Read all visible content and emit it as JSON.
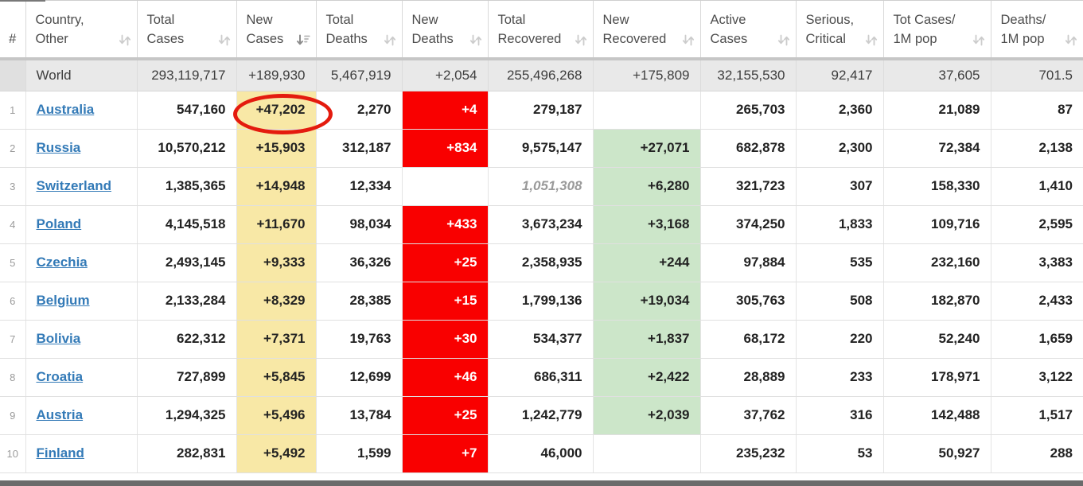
{
  "colors": {
    "new-cases-bg": "#F8E8A6",
    "new-deaths-bg": "#F90000",
    "new-recovered-bg": "#CCE6C9",
    "link-blue": "#337AB7",
    "annotation-red": "#E41B0E",
    "world-row-bg": "#E9E9E9"
  },
  "annotation": {
    "shape": "red-ellipse",
    "circled_value": "+47,202",
    "circled_cell": "Australia new cases"
  },
  "table": {
    "columns": [
      {
        "key": "rank",
        "label_lines": [
          "#"
        ],
        "sort": "none"
      },
      {
        "key": "country",
        "label_lines": [
          "Country,",
          "Other"
        ],
        "sort": "both"
      },
      {
        "key": "total_cases",
        "label_lines": [
          "Total",
          "Cases"
        ],
        "sort": "both"
      },
      {
        "key": "new_cases",
        "label_lines": [
          "New",
          "Cases"
        ],
        "sort": "desc"
      },
      {
        "key": "total_deaths",
        "label_lines": [
          "Total",
          "Deaths"
        ],
        "sort": "both"
      },
      {
        "key": "new_deaths",
        "label_lines": [
          "New",
          "Deaths"
        ],
        "sort": "both"
      },
      {
        "key": "total_recovered",
        "label_lines": [
          "Total",
          "Recovered"
        ],
        "sort": "both"
      },
      {
        "key": "new_recovered",
        "label_lines": [
          "New",
          "Recovered"
        ],
        "sort": "both"
      },
      {
        "key": "active_cases",
        "label_lines": [
          "Active",
          "Cases"
        ],
        "sort": "both"
      },
      {
        "key": "serious_critical",
        "label_lines": [
          "Serious,",
          "Critical"
        ],
        "sort": "both"
      },
      {
        "key": "tot_cases_1m",
        "label_lines": [
          "Tot Cases/",
          "1M pop"
        ],
        "sort": "both"
      },
      {
        "key": "deaths_1m",
        "label_lines": [
          "Deaths/",
          "1M pop"
        ],
        "sort": "both"
      }
    ],
    "world_row": {
      "rank": "",
      "country": "World",
      "total_cases": "293,119,717",
      "new_cases": "+189,930",
      "total_deaths": "5,467,919",
      "new_deaths": "+2,054",
      "total_recovered": "255,496,268",
      "new_recovered": "+175,809",
      "active_cases": "32,155,530",
      "serious_critical": "92,417",
      "tot_cases_1m": "37,605",
      "deaths_1m": "701.5"
    },
    "rows": [
      {
        "rank": "1",
        "country": "Australia",
        "total_cases": "547,160",
        "new_cases": "+47,202",
        "total_deaths": "2,270",
        "new_deaths": "+4",
        "total_recovered": "279,187",
        "new_recovered": "",
        "active_cases": "265,703",
        "serious_critical": "2,360",
        "tot_cases_1m": "21,089",
        "deaths_1m": "87",
        "annotated": true,
        "recovered_estimated": false
      },
      {
        "rank": "2",
        "country": "Russia",
        "total_cases": "10,570,212",
        "new_cases": "+15,903",
        "total_deaths": "312,187",
        "new_deaths": "+834",
        "total_recovered": "9,575,147",
        "new_recovered": "+27,071",
        "active_cases": "682,878",
        "serious_critical": "2,300",
        "tot_cases_1m": "72,384",
        "deaths_1m": "2,138",
        "annotated": false,
        "recovered_estimated": false
      },
      {
        "rank": "3",
        "country": "Switzerland",
        "total_cases": "1,385,365",
        "new_cases": "+14,948",
        "total_deaths": "12,334",
        "new_deaths": "",
        "total_recovered": "1,051,308",
        "new_recovered": "+6,280",
        "active_cases": "321,723",
        "serious_critical": "307",
        "tot_cases_1m": "158,330",
        "deaths_1m": "1,410",
        "annotated": false,
        "recovered_estimated": true
      },
      {
        "rank": "4",
        "country": "Poland",
        "total_cases": "4,145,518",
        "new_cases": "+11,670",
        "total_deaths": "98,034",
        "new_deaths": "+433",
        "total_recovered": "3,673,234",
        "new_recovered": "+3,168",
        "active_cases": "374,250",
        "serious_critical": "1,833",
        "tot_cases_1m": "109,716",
        "deaths_1m": "2,595",
        "annotated": false,
        "recovered_estimated": false
      },
      {
        "rank": "5",
        "country": "Czechia",
        "total_cases": "2,493,145",
        "new_cases": "+9,333",
        "total_deaths": "36,326",
        "new_deaths": "+25",
        "total_recovered": "2,358,935",
        "new_recovered": "+244",
        "active_cases": "97,884",
        "serious_critical": "535",
        "tot_cases_1m": "232,160",
        "deaths_1m": "3,383",
        "annotated": false,
        "recovered_estimated": false
      },
      {
        "rank": "6",
        "country": "Belgium",
        "total_cases": "2,133,284",
        "new_cases": "+8,329",
        "total_deaths": "28,385",
        "new_deaths": "+15",
        "total_recovered": "1,799,136",
        "new_recovered": "+19,034",
        "active_cases": "305,763",
        "serious_critical": "508",
        "tot_cases_1m": "182,870",
        "deaths_1m": "2,433",
        "annotated": false,
        "recovered_estimated": false
      },
      {
        "rank": "7",
        "country": "Bolivia",
        "total_cases": "622,312",
        "new_cases": "+7,371",
        "total_deaths": "19,763",
        "new_deaths": "+30",
        "total_recovered": "534,377",
        "new_recovered": "+1,837",
        "active_cases": "68,172",
        "serious_critical": "220",
        "tot_cases_1m": "52,240",
        "deaths_1m": "1,659",
        "annotated": false,
        "recovered_estimated": false
      },
      {
        "rank": "8",
        "country": "Croatia",
        "total_cases": "727,899",
        "new_cases": "+5,845",
        "total_deaths": "12,699",
        "new_deaths": "+46",
        "total_recovered": "686,311",
        "new_recovered": "+2,422",
        "active_cases": "28,889",
        "serious_critical": "233",
        "tot_cases_1m": "178,971",
        "deaths_1m": "3,122",
        "annotated": false,
        "recovered_estimated": false
      },
      {
        "rank": "9",
        "country": "Austria",
        "total_cases": "1,294,325",
        "new_cases": "+5,496",
        "total_deaths": "13,784",
        "new_deaths": "+25",
        "total_recovered": "1,242,779",
        "new_recovered": "+2,039",
        "active_cases": "37,762",
        "serious_critical": "316",
        "tot_cases_1m": "142,488",
        "deaths_1m": "1,517",
        "annotated": false,
        "recovered_estimated": false
      },
      {
        "rank": "10",
        "country": "Finland",
        "total_cases": "282,831",
        "new_cases": "+5,492",
        "total_deaths": "1,599",
        "new_deaths": "+7",
        "total_recovered": "46,000",
        "new_recovered": "",
        "active_cases": "235,232",
        "serious_critical": "53",
        "tot_cases_1m": "50,927",
        "deaths_1m": "288",
        "annotated": false,
        "recovered_estimated": false
      }
    ]
  }
}
